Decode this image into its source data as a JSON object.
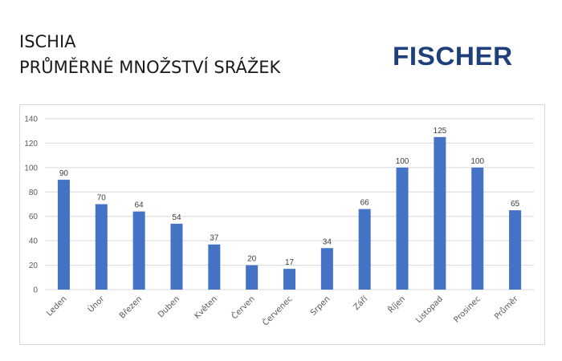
{
  "header": {
    "title_line1": "ISCHIA",
    "title_line2": "PRŮMĚRNÉ MNOŽSTVÍ SRÁŽEK",
    "logo_text": "FISCHER"
  },
  "colors": {
    "bar": "#4472c4",
    "grid": "#d9d9d9",
    "axis_text": "#595959",
    "logo": "#1f3f7a"
  },
  "chart_data": {
    "type": "bar",
    "title": "",
    "xlabel": "",
    "ylabel": "",
    "categories": [
      "Leden",
      "Únor",
      "Březen",
      "Duben",
      "Květen",
      "Červen",
      "Červenec",
      "Srpen",
      "Září",
      "Říjen",
      "Listopad",
      "Prosinec",
      "Průměr"
    ],
    "values": [
      90,
      70,
      64,
      54,
      37,
      20,
      17,
      34,
      66,
      100,
      125,
      100,
      65
    ],
    "ylim": [
      0,
      140
    ],
    "yticks": [
      0,
      20,
      40,
      60,
      80,
      100,
      120,
      140
    ],
    "grid": true,
    "legend": "none",
    "data_labels": true
  }
}
